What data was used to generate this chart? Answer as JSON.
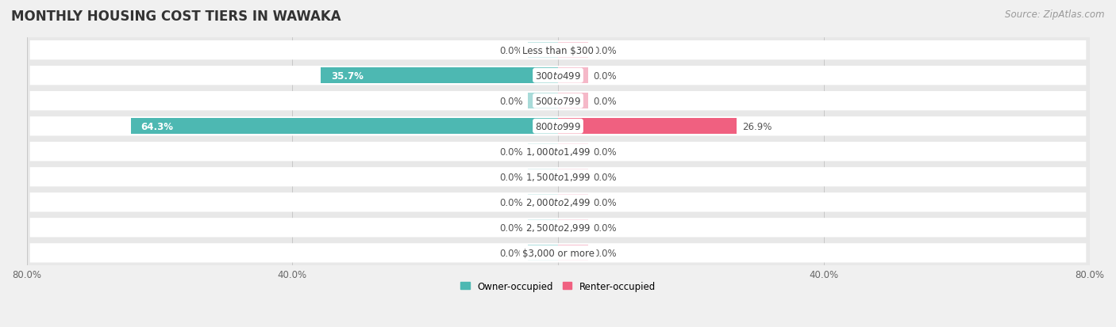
{
  "title": "MONTHLY HOUSING COST TIERS IN WAWAKA",
  "source": "Source: ZipAtlas.com",
  "categories": [
    "Less than $300",
    "$300 to $499",
    "$500 to $799",
    "$800 to $999",
    "$1,000 to $1,499",
    "$1,500 to $1,999",
    "$2,000 to $2,499",
    "$2,500 to $2,999",
    "$3,000 or more"
  ],
  "owner_values": [
    0.0,
    35.7,
    0.0,
    64.3,
    0.0,
    0.0,
    0.0,
    0.0,
    0.0
  ],
  "renter_values": [
    0.0,
    0.0,
    0.0,
    26.9,
    0.0,
    0.0,
    0.0,
    0.0,
    0.0
  ],
  "owner_color": "#4db8b2",
  "owner_color_light": "#a8dbd9",
  "renter_color": "#f06080",
  "renter_color_light": "#f5b8c8",
  "owner_label": "Owner-occupied",
  "renter_label": "Renter-occupied",
  "xlim": [
    -80,
    80
  ],
  "x_axis_ticks": [
    -80,
    -40,
    0,
    40,
    80
  ],
  "background_color": "#f0f0f0",
  "row_bg_color": "#e8e8e8",
  "row_inner_color": "#ffffff",
  "title_fontsize": 12,
  "source_fontsize": 8.5,
  "label_fontsize": 8.5,
  "value_fontsize": 8.5,
  "axis_fontsize": 8.5,
  "bar_height": 0.62,
  "stub_size": 4.5,
  "center_label_color": "#444444",
  "value_label_color": "#555555"
}
